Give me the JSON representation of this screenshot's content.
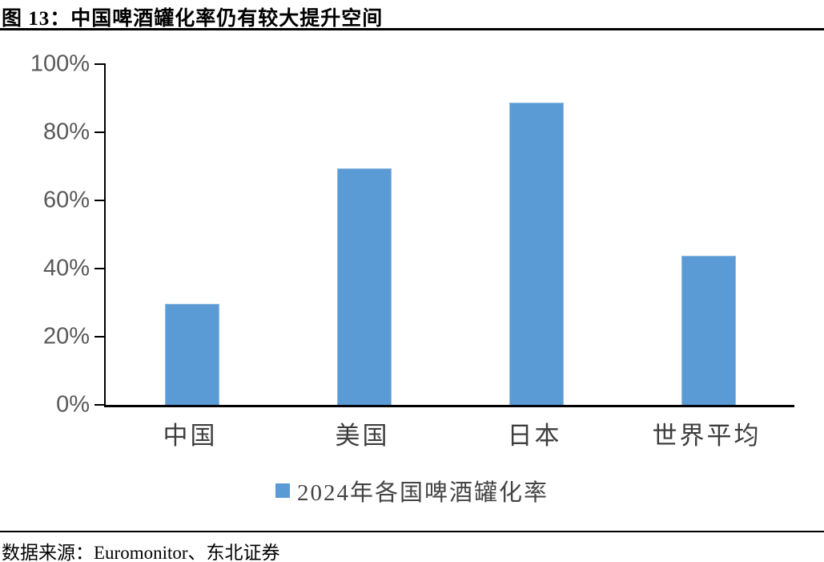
{
  "figure": {
    "title": "图 13：中国啤酒罐化率仍有较大提升空间",
    "source": "数据来源：Euromonitor、东北证券"
  },
  "chart_data": {
    "type": "bar",
    "title": "图 13：中国啤酒罐化率仍有较大提升空间",
    "categories": [
      "中国",
      "美国",
      "日本",
      "世界平均"
    ],
    "values": [
      29.7,
      69.3,
      88.6,
      43.8
    ],
    "series_name": "2024年各国啤酒罐化率",
    "unit": "%",
    "xlabel": "",
    "ylabel": "",
    "ylim": [
      0,
      100
    ],
    "yticks": [
      0,
      20,
      40,
      60,
      80,
      100
    ],
    "ytick_suffix": "%",
    "grid": false,
    "legend_position": "bottom",
    "colors": {
      "bar_fill": "#5B9BD5",
      "bar_border": "#8FBADF",
      "axis": "#000000",
      "ytick_label": "#595959",
      "xtick_label": "#3d3d3d",
      "legend_text": "#444444"
    }
  }
}
